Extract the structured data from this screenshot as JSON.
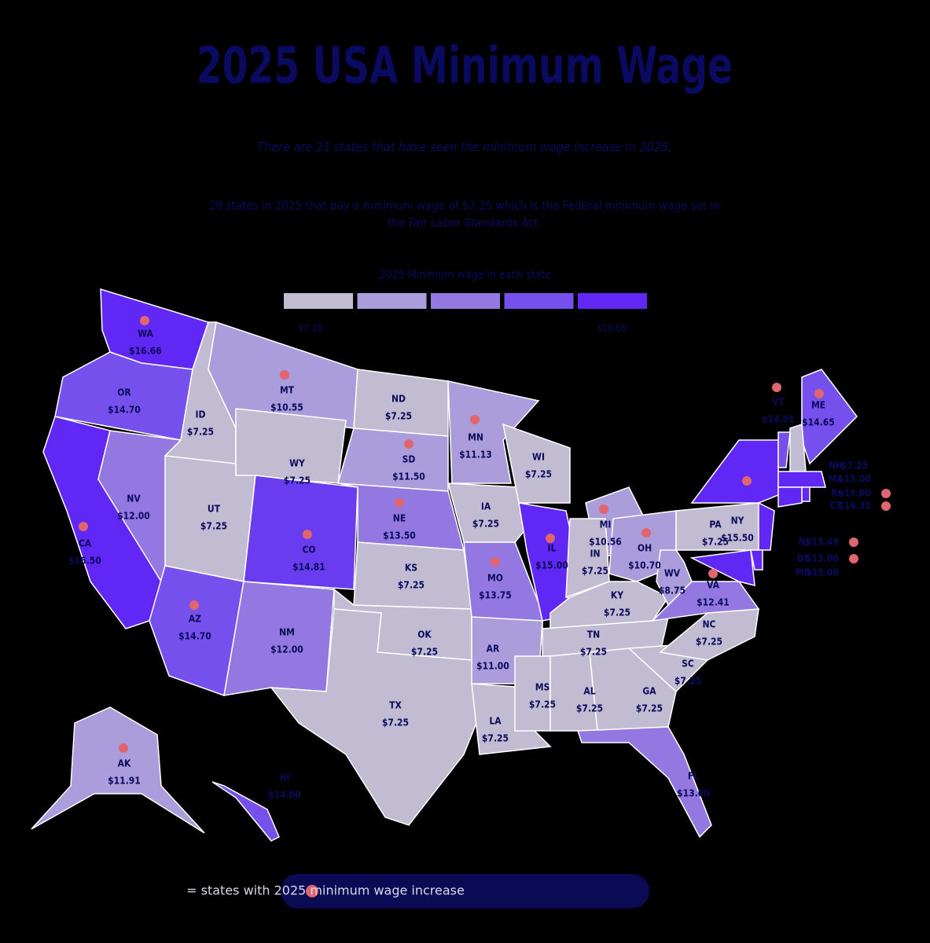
{
  "header": {
    "title": "2025 USA Minimum Wage",
    "subtitle": "There are 21 states that have seen the minimum wage increase in 2025.",
    "note": [
      "20 states in 2025 that pay a minimum wage of $7.25 which is the Federal minimum wage set in",
      "the Fair Labor Standards Act."
    ]
  },
  "legend": {
    "title": "2025 Minimum wage in each state",
    "colors": [
      "#c2bcd3",
      "#ab9cdb",
      "#9478e2",
      "#7650ec",
      "#6127f5"
    ],
    "low": "$7.25",
    "high": "$16.66"
  },
  "states": [
    {
      "abbr": "WA",
      "wage": "$16.66",
      "increase": true,
      "color": "#6127f5"
    },
    {
      "abbr": "OR",
      "wage": "$14.70",
      "increase": false,
      "color": "#7650ec"
    },
    {
      "abbr": "CA",
      "wage": "$16.50",
      "increase": true,
      "color": "#6127f5"
    },
    {
      "abbr": "NV",
      "wage": "$12.00",
      "increase": false,
      "color": "#9478e2"
    },
    {
      "abbr": "ID",
      "wage": "$7.25",
      "increase": false,
      "color": "#c2bcd3"
    },
    {
      "abbr": "MT",
      "wage": "$10.55",
      "increase": true,
      "color": "#ab9cdb"
    },
    {
      "abbr": "WY",
      "wage": "$7.25",
      "increase": false,
      "color": "#c2bcd3"
    },
    {
      "abbr": "UT",
      "wage": "$7.25",
      "increase": false,
      "color": "#c2bcd3"
    },
    {
      "abbr": "CO",
      "wage": "$14.81",
      "increase": true,
      "color": "#6a3cf0"
    },
    {
      "abbr": "AZ",
      "wage": "$14.70",
      "increase": true,
      "color": "#7650ec"
    },
    {
      "abbr": "NM",
      "wage": "$12.00",
      "increase": false,
      "color": "#9478e2"
    },
    {
      "abbr": "ND",
      "wage": "$7.25",
      "increase": false,
      "color": "#c2bcd3"
    },
    {
      "abbr": "SD",
      "wage": "$11.50",
      "increase": true,
      "color": "#ab9cdb"
    },
    {
      "abbr": "NE",
      "wage": "$13.50",
      "increase": true,
      "color": "#9478e2"
    },
    {
      "abbr": "KS",
      "wage": "$7.25",
      "increase": false,
      "color": "#c2bcd3"
    },
    {
      "abbr": "OK",
      "wage": "$7.25",
      "increase": false,
      "color": "#c2bcd3"
    },
    {
      "abbr": "TX",
      "wage": "$7.25",
      "increase": false,
      "color": "#c2bcd3"
    },
    {
      "abbr": "MN",
      "wage": "$11.13",
      "increase": true,
      "color": "#ab9cdb"
    },
    {
      "abbr": "IA",
      "wage": "$7.25",
      "increase": false,
      "color": "#c2bcd3"
    },
    {
      "abbr": "MO",
      "wage": "$13.75",
      "increase": true,
      "color": "#9478e2"
    },
    {
      "abbr": "AR",
      "wage": "$11.00",
      "increase": false,
      "color": "#ab9cdb"
    },
    {
      "abbr": "LA",
      "wage": "$7.25",
      "increase": false,
      "color": "#c2bcd3"
    },
    {
      "abbr": "WI",
      "wage": "$7.25",
      "increase": false,
      "color": "#c2bcd3"
    },
    {
      "abbr": "IL",
      "wage": "$15.00",
      "increase": true,
      "color": "#6127f5"
    },
    {
      "abbr": "MI",
      "wage": "$10.56",
      "increase": true,
      "color": "#ab9cdb"
    },
    {
      "abbr": "IN",
      "wage": "$7.25",
      "increase": false,
      "color": "#c2bcd3"
    },
    {
      "abbr": "OH",
      "wage": "$10.70",
      "increase": true,
      "color": "#ab9cdb"
    },
    {
      "abbr": "KY",
      "wage": "$7.25",
      "increase": false,
      "color": "#c2bcd3"
    },
    {
      "abbr": "TN",
      "wage": "$7.25",
      "increase": false,
      "color": "#c2bcd3"
    },
    {
      "abbr": "MS",
      "wage": "$7.25",
      "increase": false,
      "color": "#c2bcd3"
    },
    {
      "abbr": "AL",
      "wage": "$7.25",
      "increase": false,
      "color": "#c2bcd3"
    },
    {
      "abbr": "GA",
      "wage": "$7.25",
      "increase": false,
      "color": "#c2bcd3"
    },
    {
      "abbr": "FL",
      "wage": "$13.00",
      "increase": false,
      "color": "#9478e2"
    },
    {
      "abbr": "SC",
      "wage": "$7.25",
      "increase": false,
      "color": "#c2bcd3"
    },
    {
      "abbr": "NC",
      "wage": "$7.25",
      "increase": false,
      "color": "#c2bcd3"
    },
    {
      "abbr": "VA",
      "wage": "$12.41",
      "increase": true,
      "color": "#9478e2"
    },
    {
      "abbr": "WV",
      "wage": "$8.75",
      "increase": false,
      "color": "#ab9cdb"
    },
    {
      "abbr": "PA",
      "wage": "$7.25",
      "increase": false,
      "color": "#c2bcd3"
    },
    {
      "abbr": "NY",
      "wage": "$15.50",
      "increase": true,
      "color": "#6127f5"
    },
    {
      "abbr": "ME",
      "wage": "$14.65",
      "increase": true,
      "color": "#7650ec"
    },
    {
      "abbr": "AK",
      "wage": "$11.91",
      "increase": true,
      "color": "#ab9cdb"
    },
    {
      "abbr": "VT",
      "wage": "$14.01",
      "increase": true,
      "color": "#7650ec"
    },
    {
      "abbr": "NH",
      "wage": "$7.25",
      "increase": false,
      "color": "#c2bcd3"
    },
    {
      "abbr": "MA",
      "wage": "$15.00",
      "increase": false,
      "color": "#6127f5"
    },
    {
      "abbr": "RI",
      "wage": "$15.00",
      "increase": true,
      "color": "#6127f5"
    },
    {
      "abbr": "CT",
      "wage": "$16.35",
      "increase": true,
      "color": "#6127f5"
    },
    {
      "abbr": "NJ",
      "wage": "$15.49",
      "increase": true,
      "color": "#6127f5"
    },
    {
      "abbr": "DE",
      "wage": "$15.00",
      "increase": true,
      "color": "#6127f5"
    },
    {
      "abbr": "MD",
      "wage": "$15.00",
      "increase": false,
      "color": "#6127f5"
    },
    {
      "abbr": "HI",
      "wage": "$14.00",
      "increase": false,
      "color": "#7650ec"
    }
  ],
  "footer": {
    "key": "= states with 2025 minimum wage increase"
  }
}
